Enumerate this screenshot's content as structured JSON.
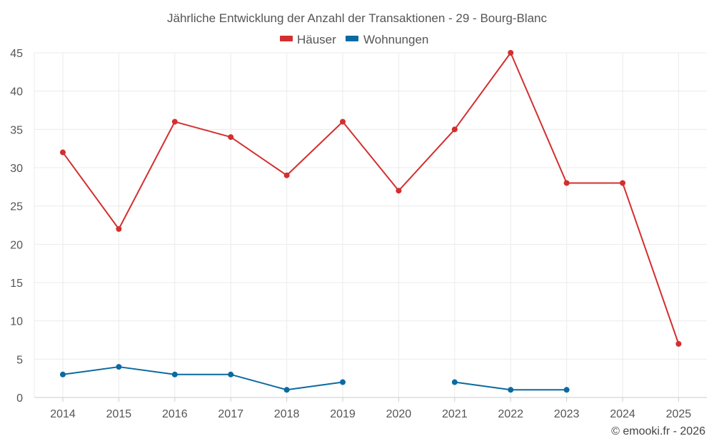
{
  "chart_data": {
    "type": "line",
    "title": "Jährliche Entwicklung der Anzahl der Transaktionen - 29 - Bourg-Blanc",
    "categories": [
      "2014",
      "2015",
      "2016",
      "2017",
      "2018",
      "2019",
      "2020",
      "2021",
      "2022",
      "2023",
      "2024",
      "2025"
    ],
    "ylim": [
      0,
      45
    ],
    "yticks": [
      0,
      5,
      10,
      15,
      20,
      25,
      30,
      35,
      40,
      45
    ],
    "grid": true,
    "legend_position": "top-center",
    "series": [
      {
        "name": "Häuser",
        "color": "#d32f2f",
        "values": [
          32,
          22,
          36,
          34,
          29,
          36,
          27,
          35,
          45,
          28,
          28,
          7
        ]
      },
      {
        "name": "Wohnungen",
        "color": "#0a6aa1",
        "values": [
          3,
          4,
          3,
          3,
          1,
          2,
          null,
          2,
          1,
          1,
          null,
          null
        ]
      }
    ],
    "credit": "© emooki.fr - 2026"
  }
}
